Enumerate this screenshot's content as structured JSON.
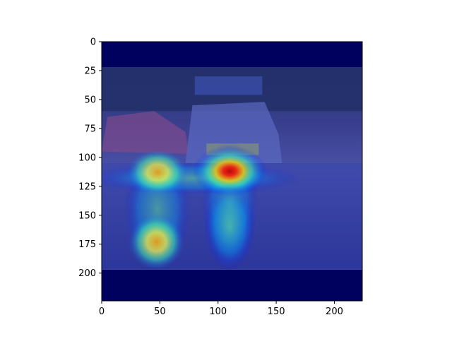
{
  "chart_data": {
    "type": "heatmap",
    "title": "",
    "xlabel": "",
    "ylabel": "",
    "xlim": [
      0,
      224
    ],
    "ylim": [
      224,
      0
    ],
    "x_ticks": [
      0,
      50,
      100,
      150,
      200
    ],
    "y_ticks": [
      0,
      25,
      50,
      75,
      100,
      125,
      150,
      175,
      200
    ],
    "x_tick_labels": [
      "0",
      "50",
      "100",
      "150",
      "200"
    ],
    "y_tick_labels": [
      "0",
      "25",
      "50",
      "75",
      "100",
      "125",
      "150",
      "175",
      "200"
    ],
    "colormap": "jet",
    "overlay": "photo-of-flooded-street-with-cars",
    "image_content_rows": [
      22,
      197
    ],
    "hotspots": [
      {
        "x": 110,
        "y": 112,
        "intensity": 1.0
      },
      {
        "x": 48,
        "y": 113,
        "intensity": 0.85
      },
      {
        "x": 47,
        "y": 173,
        "intensity": 0.8
      },
      {
        "x": 110,
        "y": 160,
        "intensity": 0.45
      }
    ],
    "colors": {
      "background_band": "#00005f",
      "cold": "#0000a0",
      "hot": "#b00000",
      "axes": "#000000"
    }
  }
}
